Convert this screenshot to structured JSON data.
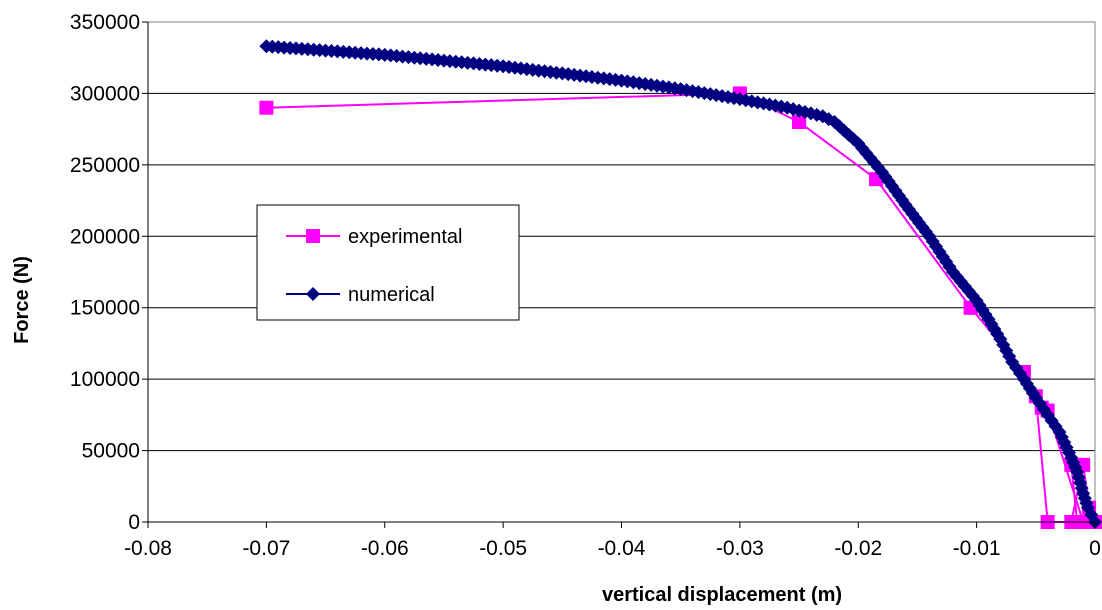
{
  "chart_data": {
    "type": "scatter",
    "title": "",
    "xlabel": "vertical displacement (m)",
    "ylabel": "Force (N)",
    "xlim": [
      -0.08,
      0
    ],
    "ylim": [
      0,
      350000
    ],
    "x_ticks": [
      "-0.08",
      "-0.07",
      "-0.06",
      "-0.05",
      "-0.04",
      "-0.03",
      "-0.02",
      "-0.01",
      "0"
    ],
    "y_ticks": [
      "0",
      "50000",
      "100000",
      "150000",
      "200000",
      "250000",
      "300000",
      "350000"
    ],
    "grid": "horizontal",
    "legend_position": "left-middle",
    "series": [
      {
        "name": "experimental",
        "color": "#ff00ff",
        "marker": "square",
        "x": [
          0,
          -0.0005,
          -0.001,
          -0.002,
          -0.004,
          -0.005,
          -0.0045,
          -0.002,
          -0.0015,
          -0.001,
          -0.004,
          -0.006,
          -0.0105,
          -0.0105,
          -0.0185,
          -0.025,
          -0.025,
          -0.03,
          -0.07
        ],
        "y": [
          0,
          10000,
          40000,
          0,
          0,
          88000,
          80000,
          40000,
          0,
          0,
          78000,
          105000,
          150000,
          150000,
          240000,
          280000,
          280000,
          300000,
          290000
        ]
      },
      {
        "name": "numerical",
        "color": "#000080",
        "marker": "diamond",
        "x": [
          0,
          -0.0003,
          -0.0006,
          -0.001,
          -0.0015,
          -0.002,
          -0.003,
          -0.004,
          -0.005,
          -0.006,
          -0.007,
          -0.008,
          -0.009,
          -0.01,
          -0.012,
          -0.014,
          -0.016,
          -0.018,
          -0.02,
          -0.022,
          -0.023,
          -0.024,
          -0.026,
          -0.028,
          -0.03,
          -0.035,
          -0.04,
          -0.045,
          -0.05,
          -0.055,
          -0.06,
          -0.065,
          -0.07
        ],
        "y": [
          0,
          5000,
          10000,
          20000,
          35000,
          45000,
          63000,
          75000,
          87000,
          100000,
          112000,
          128000,
          142000,
          155000,
          175000,
          200000,
          222000,
          245000,
          265000,
          280000,
          284000,
          286000,
          290000,
          293000,
          296000,
          303000,
          309000,
          314000,
          319000,
          323000,
          327000,
          330000,
          333000
        ]
      }
    ]
  }
}
